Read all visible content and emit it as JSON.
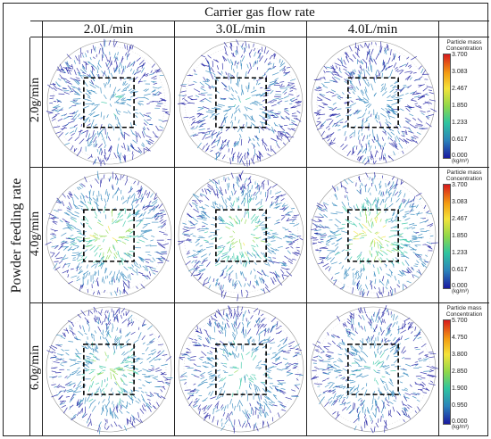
{
  "header": {
    "title": "Carrier gas flow rate"
  },
  "columns": [
    "2.0L/min",
    "3.0L/min",
    "4.0L/min"
  ],
  "side_label": "Powder feeding rate",
  "rows": [
    {
      "label": "2.0g/min",
      "legend": {
        "title_line1": "Particle mass",
        "title_line2": "Concentration",
        "ticks": [
          "3.700",
          "3.083",
          "2.467",
          "1.850",
          "1.233",
          "0.617",
          "0.000"
        ],
        "unit": "(kg/m³)"
      }
    },
    {
      "label": "4.0g/min",
      "legend": {
        "title_line1": "Particle mass",
        "title_line2": "Concentration",
        "ticks": [
          "3.700",
          "3.083",
          "2.467",
          "1.850",
          "1.233",
          "0.617",
          "0.000"
        ],
        "unit": "(kg/m³)"
      }
    },
    {
      "label": "6.0g/min",
      "legend": {
        "title_line1": "Particle mass",
        "title_line2": "Concentration",
        "ticks": [
          "5.700",
          "4.750",
          "3.800",
          "2.850",
          "1.900",
          "0.950",
          "0.000"
        ],
        "unit": "(kg/m³)"
      }
    }
  ],
  "colors": {
    "low": "#1a1aa0",
    "mid_low": "#2b83ba",
    "mid": "#2ec4a0",
    "mid_high": "#8ed84a",
    "high": "#f4e33a",
    "max": "#d7191c"
  }
}
